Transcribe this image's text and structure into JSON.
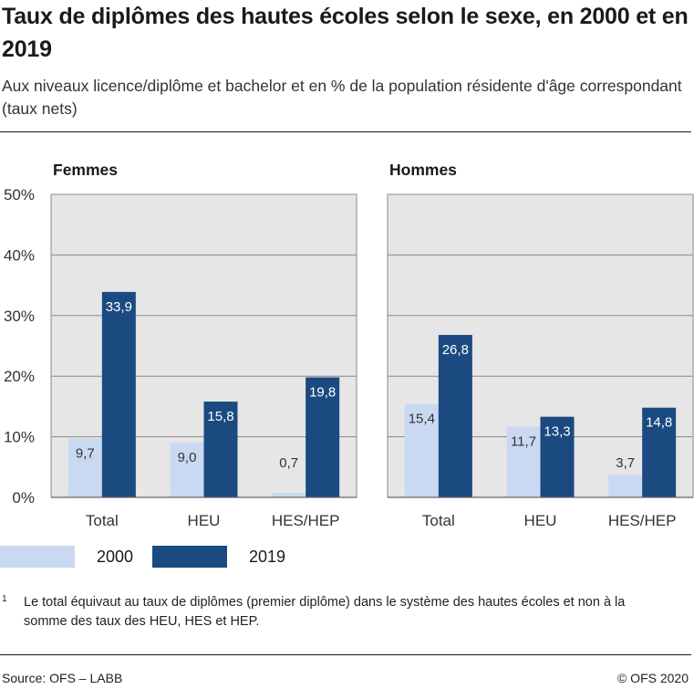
{
  "title": "Taux de diplômes des hautes écoles selon le sexe, en 2000 et en 2019",
  "subtitle": "Aux niveaux licence/diplôme et bachelor et en % de la population résidente d'âge correspondant (taux nets)",
  "legend": [
    {
      "label": "2000",
      "color": "#c9d9f2"
    },
    {
      "label": "2019",
      "color": "#1b4a80"
    }
  ],
  "footnote": {
    "mark": "1",
    "text": "Le total équivaut au taux de diplômes (premier diplôme) dans le système des hautes écoles et non à la somme des taux des HEU, HES et HEP."
  },
  "source": "Source: OFS – LABB",
  "copyright": "© OFS 2020",
  "chart_data": [
    {
      "type": "bar",
      "title": "Femmes",
      "categories": [
        "Total",
        "HEU",
        "HES/HEP"
      ],
      "series": [
        {
          "name": "2000",
          "values": [
            9.7,
            9.0,
            0.7
          ],
          "labels": [
            "9,7",
            "9,0",
            "0,7"
          ]
        },
        {
          "name": "2019",
          "values": [
            33.9,
            15.8,
            19.8
          ],
          "labels": [
            "33,9",
            "15,8",
            "19,8"
          ]
        }
      ],
      "ylim": [
        0,
        50
      ],
      "yticks": [
        "0%",
        "10%",
        "20%",
        "30%",
        "40%",
        "50%"
      ],
      "grid": true
    },
    {
      "type": "bar",
      "title": "Hommes",
      "categories": [
        "Total",
        "HEU",
        "HES/HEP"
      ],
      "series": [
        {
          "name": "2000",
          "values": [
            15.4,
            11.7,
            3.7
          ],
          "labels": [
            "15,4",
            "11,7",
            "3,7"
          ]
        },
        {
          "name": "2019",
          "values": [
            26.8,
            13.3,
            14.8
          ],
          "labels": [
            "26,8",
            "13,3",
            "14,8"
          ]
        }
      ],
      "ylim": [
        0,
        50
      ],
      "yticks": [
        "0%",
        "10%",
        "20%",
        "30%",
        "40%",
        "50%"
      ],
      "grid": true
    }
  ]
}
